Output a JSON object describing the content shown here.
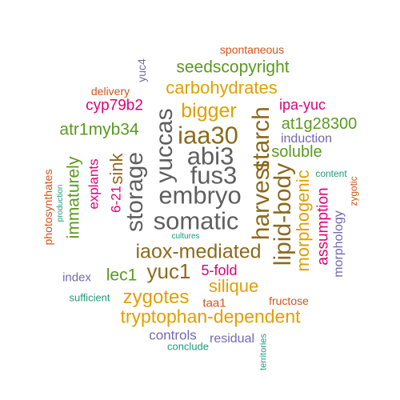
{
  "colors": {
    "gray": "#5f5f5f",
    "brown": "#8c6a1d",
    "green": "#5a9a1e",
    "gold": "#e0a000",
    "magenta": "#e0007a",
    "purple": "#7468b0",
    "orange": "#d2541a",
    "teal": "#1f9a78"
  },
  "words": [
    {
      "text": "spontaneous",
      "color": "orange"
    },
    {
      "text": "yuc4",
      "color": "purple"
    },
    {
      "text": "seedscopyright",
      "color": "green"
    },
    {
      "text": "delivery",
      "color": "orange"
    },
    {
      "text": "carbohydrates",
      "color": "gold"
    },
    {
      "text": "cyp79b2",
      "color": "magenta"
    },
    {
      "text": "bigger",
      "color": "gold"
    },
    {
      "text": "ipa-yuc",
      "color": "magenta"
    },
    {
      "text": "yuccas",
      "color": "gray"
    },
    {
      "text": "iaa30",
      "color": "brown"
    },
    {
      "text": "starch",
      "color": "brown"
    },
    {
      "text": "harvest",
      "color": "brown"
    },
    {
      "text": "at1g28300",
      "color": "green"
    },
    {
      "text": "atr1myb34",
      "color": "green"
    },
    {
      "text": "sink",
      "color": "brown"
    },
    {
      "text": "abi3",
      "color": "gray"
    },
    {
      "text": "soluble",
      "color": "green"
    },
    {
      "text": "induction",
      "color": "purple"
    },
    {
      "text": "immaturely",
      "color": "green"
    },
    {
      "text": "storage",
      "color": "gray"
    },
    {
      "text": "fus3",
      "color": "gray"
    },
    {
      "text": "photosynthates",
      "color": "orange"
    },
    {
      "text": "explants",
      "color": "magenta"
    },
    {
      "text": "content",
      "color": "teal"
    },
    {
      "text": "lipid-body",
      "color": "brown"
    },
    {
      "text": "morphogenic",
      "color": "gold"
    },
    {
      "text": "zygotic",
      "color": "orange"
    },
    {
      "text": "production",
      "color": "teal"
    },
    {
      "text": "6-21",
      "color": "magenta"
    },
    {
      "text": "embryo",
      "color": "gray"
    },
    {
      "text": "assumption",
      "color": "magenta"
    },
    {
      "text": "somatic",
      "color": "gray"
    },
    {
      "text": "morphology",
      "color": "purple"
    },
    {
      "text": "cultures",
      "color": "teal"
    },
    {
      "text": "iaox-mediated",
      "color": "brown"
    },
    {
      "text": "5-fold",
      "color": "magenta"
    },
    {
      "text": "index",
      "color": "purple"
    },
    {
      "text": "lec1",
      "color": "green"
    },
    {
      "text": "yuc1",
      "color": "brown"
    },
    {
      "text": "silique",
      "color": "gold"
    },
    {
      "text": "sufficient",
      "color": "teal"
    },
    {
      "text": "zygotes",
      "color": "gold"
    },
    {
      "text": "taa1",
      "color": "orange"
    },
    {
      "text": "fructose",
      "color": "orange"
    },
    {
      "text": "tryptophan-dependent",
      "color": "gold"
    },
    {
      "text": "controls",
      "color": "purple"
    },
    {
      "text": "residual",
      "color": "purple"
    },
    {
      "text": "conclude",
      "color": "teal"
    },
    {
      "text": "territories",
      "color": "teal"
    }
  ]
}
